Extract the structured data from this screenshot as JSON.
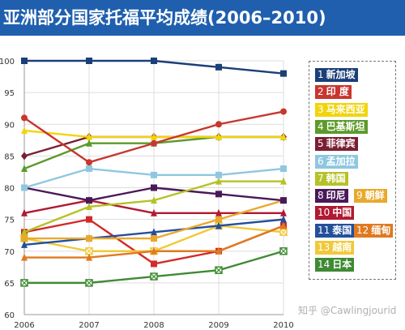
{
  "header": {
    "title": "亚洲部分国家托福平均成绩(2006–2010)",
    "bg": "#1f5fae"
  },
  "watermark": "知乎 @Cawlingjourid",
  "chart_data": {
    "type": "line",
    "x": [
      2006,
      2007,
      2008,
      2009,
      2010
    ],
    "ylim": [
      60,
      100
    ],
    "yticks": [
      60,
      65,
      70,
      75,
      80,
      85,
      90,
      95,
      100
    ],
    "grid": true,
    "legend": "right",
    "series": [
      {
        "key": "1",
        "name": "新加坡",
        "color": "#1b3f78",
        "marker": "square",
        "values": [
          100,
          100,
          100,
          99,
          98
        ]
      },
      {
        "key": "2",
        "name": "印 度",
        "color": "#c8362f",
        "marker": "circle",
        "values": [
          91,
          84,
          87,
          90,
          92
        ]
      },
      {
        "key": "3",
        "name": "马来西亚",
        "color": "#f2d40c",
        "marker": "triangle",
        "values": [
          89,
          88,
          88,
          88,
          88
        ]
      },
      {
        "key": "4",
        "name": "巴基斯坦",
        "color": "#5d9a2a",
        "marker": "triangle",
        "values": [
          83,
          87,
          87,
          88,
          88
        ]
      },
      {
        "key": "5",
        "name": "菲律宾",
        "color": "#7a1f33",
        "marker": "diamond",
        "values": [
          85,
          88,
          88,
          88,
          88
        ]
      },
      {
        "key": "6",
        "name": "孟加拉",
        "color": "#8fc7e0",
        "marker": "square",
        "values": [
          80,
          83,
          82,
          82,
          83
        ]
      },
      {
        "key": "7",
        "name": "韩国",
        "color": "#b5c227",
        "marker": "triangle",
        "values": [
          73,
          77,
          78,
          81,
          81
        ]
      },
      {
        "key": "8",
        "name": "印尼",
        "color": "#4a1858",
        "marker": "square",
        "values": [
          80,
          78,
          80,
          79,
          78
        ]
      },
      {
        "key": "9",
        "name": "朝鲜",
        "color": "#e9a92b",
        "marker": "square",
        "values": [
          72,
          72,
          72,
          75,
          78
        ]
      },
      {
        "key": "10",
        "name": "中国",
        "color": "#b01a32",
        "marker": "triangle",
        "values": [
          76,
          78,
          76,
          76,
          76
        ]
      },
      {
        "key": "11",
        "name": "泰国",
        "color": "#244f9b",
        "marker": "triangle",
        "values": [
          71,
          72,
          73,
          74,
          75
        ]
      },
      {
        "key": "12",
        "name": "缅甸",
        "color": "#e07a20",
        "marker": "triangle",
        "values": [
          69,
          69,
          70,
          70,
          74
        ]
      },
      {
        "key": "13",
        "name": "越南",
        "color": "#f0c93a",
        "marker": "xbox",
        "values": [
          72,
          70,
          70,
          74,
          73
        ]
      },
      {
        "key": "14",
        "name": "日本",
        "color": "#3f8a33",
        "marker": "xbox",
        "values": [
          65,
          65,
          66,
          67,
          70
        ]
      },
      {
        "key": "",
        "name": "",
        "color": "#d22a2a",
        "marker": "square",
        "values": [
          73,
          75,
          68,
          70,
          74
        ]
      }
    ]
  },
  "legend_rows": [
    {
      "items": [
        {
          "s": 0
        }
      ]
    },
    {
      "items": [
        {
          "s": 1
        }
      ]
    },
    {
      "items": [
        {
          "s": 2
        }
      ]
    },
    {
      "items": [
        {
          "s": 3
        }
      ]
    },
    {
      "items": [
        {
          "s": 4
        }
      ]
    },
    {
      "items": [
        {
          "s": 5
        }
      ]
    },
    {
      "items": [
        {
          "s": 6
        }
      ]
    },
    {
      "items": [
        {
          "s": 7
        },
        {
          "s": 8
        }
      ]
    },
    {
      "items": [
        {
          "s": 9
        }
      ]
    },
    {
      "items": [
        {
          "s": 10
        },
        {
          "s": 11
        }
      ]
    },
    {
      "items": [
        {
          "s": 12
        }
      ]
    },
    {
      "items": [
        {
          "s": 13
        }
      ]
    }
  ]
}
